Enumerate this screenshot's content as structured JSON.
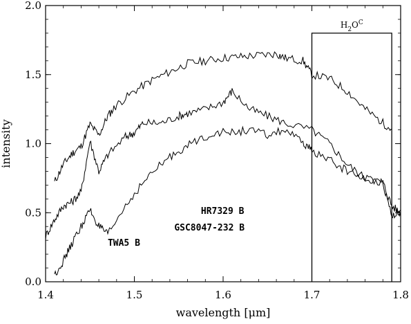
{
  "chart_data": {
    "type": "line",
    "xlabel": "wavelength [μm]",
    "ylabel": "intensity",
    "xlim": [
      1.4,
      1.8
    ],
    "ylim": [
      0.0,
      2.0
    ],
    "xticks": [
      1.4,
      1.5,
      1.6,
      1.7,
      1.8
    ],
    "xtick_labels": [
      "1.4",
      "1.5",
      "1.6",
      "1.7",
      "1.8"
    ],
    "yticks": [
      0.0,
      0.5,
      1.0,
      1.5,
      2.0
    ],
    "ytick_labels": [
      "0.0",
      "0.5",
      "1.0",
      "1.5",
      "2.0"
    ],
    "grid": false,
    "legend": "none",
    "annotation": {
      "label": "H2OC",
      "x_start": 1.7,
      "x_end": 1.79,
      "y_top": 1.8
    },
    "series": [
      {
        "name": "HR7329 B",
        "x": [
          1.41,
          1.42,
          1.43,
          1.44,
          1.45,
          1.46,
          1.47,
          1.48,
          1.5,
          1.52,
          1.54,
          1.56,
          1.58,
          1.6,
          1.62,
          1.64,
          1.66,
          1.67,
          1.69,
          1.7,
          1.72,
          1.74,
          1.76,
          1.78,
          1.79
        ],
        "y": [
          0.72,
          0.85,
          0.93,
          0.98,
          1.14,
          1.06,
          1.2,
          1.28,
          1.38,
          1.46,
          1.52,
          1.58,
          1.6,
          1.62,
          1.63,
          1.64,
          1.65,
          1.62,
          1.6,
          1.5,
          1.47,
          1.38,
          1.25,
          1.15,
          1.1
        ]
      },
      {
        "name": "GSC8047-232 B",
        "x": [
          1.4,
          1.41,
          1.42,
          1.43,
          1.44,
          1.45,
          1.46,
          1.47,
          1.49,
          1.5,
          1.51,
          1.53,
          1.55,
          1.56,
          1.58,
          1.6,
          1.61,
          1.63,
          1.65,
          1.67,
          1.7,
          1.72,
          1.74,
          1.76,
          1.78,
          1.79,
          1.8
        ],
        "y": [
          0.33,
          0.45,
          0.55,
          0.58,
          0.65,
          1.02,
          0.8,
          0.92,
          1.05,
          1.08,
          1.15,
          1.15,
          1.2,
          1.22,
          1.25,
          1.3,
          1.38,
          1.25,
          1.2,
          1.15,
          1.1,
          1.0,
          0.85,
          0.75,
          0.72,
          0.55,
          0.5
        ]
      },
      {
        "name": "TWA5 B",
        "x": [
          1.41,
          1.42,
          1.43,
          1.44,
          1.45,
          1.46,
          1.47,
          1.49,
          1.51,
          1.53,
          1.55,
          1.57,
          1.59,
          1.61,
          1.63,
          1.65,
          1.67,
          1.69,
          1.7,
          1.72,
          1.74,
          1.76,
          1.78,
          1.79,
          1.8
        ],
        "y": [
          0.05,
          0.15,
          0.28,
          0.4,
          0.52,
          0.4,
          0.34,
          0.55,
          0.72,
          0.85,
          0.95,
          1.02,
          1.08,
          1.08,
          1.1,
          1.06,
          1.1,
          1.0,
          0.95,
          0.88,
          0.8,
          0.75,
          0.72,
          0.48,
          0.52
        ]
      }
    ]
  }
}
